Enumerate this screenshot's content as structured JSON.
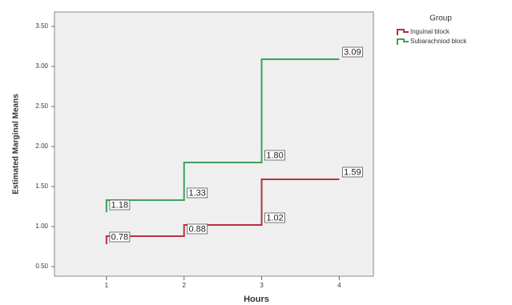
{
  "chart_data": {
    "type": "step-line",
    "x_label": "Hours",
    "y_label": "Estimated Marginal Means",
    "x": [
      1,
      2,
      3,
      4
    ],
    "xlim": [
      0.33,
      4.44
    ],
    "xticks": [
      1,
      2,
      3,
      4
    ],
    "ylim": [
      0.38,
      3.68
    ],
    "yticks": [
      {
        "value": 0.5,
        "label": "0.50"
      },
      {
        "value": 1,
        "label": "1.00"
      },
      {
        "value": 1.5,
        "label": "1.50"
      },
      {
        "value": 2,
        "label": "2.00"
      },
      {
        "value": 2.5,
        "label": "2.50"
      },
      {
        "value": 3,
        "label": "3.00"
      },
      {
        "value": 3.5,
        "label": "3.50"
      }
    ],
    "legend_title": "Group",
    "legend": "outside-right-top",
    "series": [
      {
        "name": "Inguinal block",
        "color": "#b8323e",
        "values": [
          0.78,
          0.88,
          1.02,
          1.59
        ],
        "value_labels": [
          "0.78",
          "0.88",
          "1.02",
          "1.59"
        ]
      },
      {
        "name": "Subarachniod block",
        "color": "#3aa35a",
        "values": [
          1.18,
          1.33,
          1.8,
          3.09
        ],
        "value_labels": [
          "1.18",
          "1.33",
          "1.80",
          "3.09"
        ]
      }
    ]
  }
}
